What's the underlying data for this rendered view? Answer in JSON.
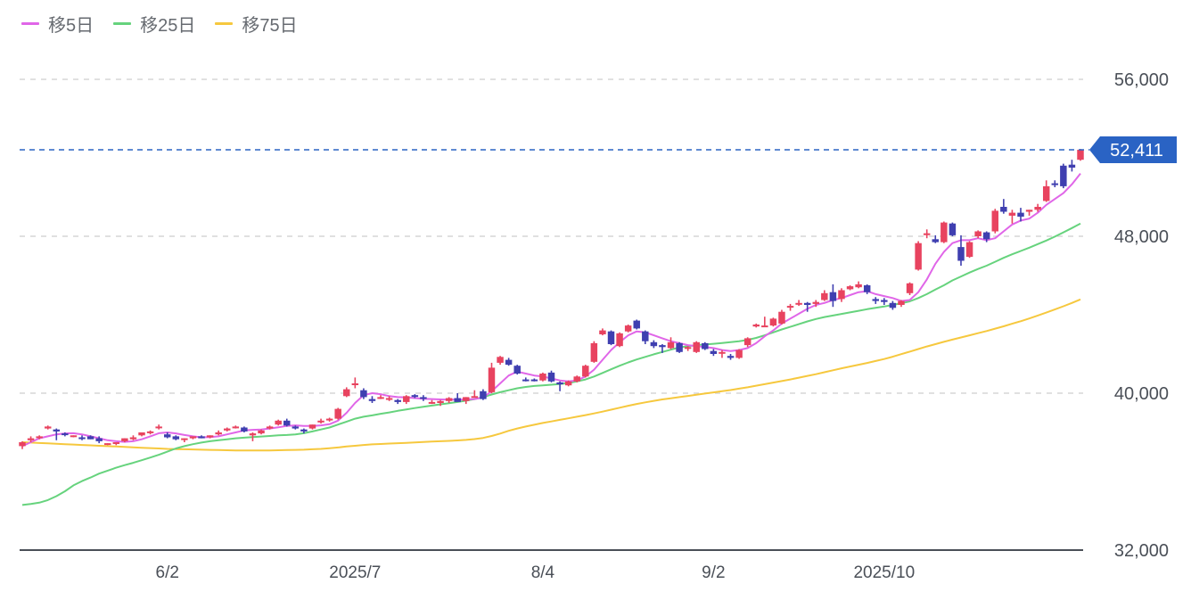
{
  "legend": [
    {
      "label": "移5日",
      "color": "#e066e8"
    },
    {
      "label": "移25日",
      "color": "#66d37d"
    },
    {
      "label": "移75日",
      "color": "#f6c83e"
    }
  ],
  "current_price": {
    "label": "52,411",
    "value": 52411,
    "color": "#2a63c4"
  },
  "colors": {
    "up": "#e8435f",
    "down": "#3f3fb0",
    "grid": "#d6d6d6",
    "axis": "#4a4f57"
  },
  "chart_data": {
    "type": "candlestick",
    "title": "",
    "xlabel": "",
    "ylabel": "",
    "ylim": [
      32000,
      56000
    ],
    "y_ticks": [
      {
        "label": "56,000",
        "value": 56000
      },
      {
        "label": "48,000",
        "value": 48000
      },
      {
        "label": "40,000",
        "value": 40000
      },
      {
        "label": "32,000",
        "value": 32000
      }
    ],
    "x_ticks": [
      {
        "label": "6/2",
        "index": 17
      },
      {
        "label": "2025/7",
        "index": 39
      },
      {
        "label": "8/4",
        "index": 61
      },
      {
        "label": "9/2",
        "index": 81
      },
      {
        "label": "2025/10",
        "index": 101
      }
    ],
    "grid": true,
    "legend_position": "top-left",
    "candles": [
      [
        37300,
        37550,
        37150,
        37500
      ],
      [
        37600,
        37800,
        37500,
        37700
      ],
      [
        37750,
        37850,
        37650,
        37800
      ],
      [
        38200,
        38350,
        38150,
        38300
      ],
      [
        38150,
        38200,
        37600,
        38050
      ],
      [
        37950,
        38000,
        37800,
        37900
      ],
      [
        37800,
        37850,
        37750,
        37850
      ],
      [
        37750,
        37850,
        37600,
        37700
      ],
      [
        37800,
        37850,
        37650,
        37650
      ],
      [
        37700,
        37800,
        37450,
        37550
      ],
      [
        37400,
        37450,
        37350,
        37450
      ],
      [
        37450,
        37500,
        37350,
        37500
      ],
      [
        37550,
        37700,
        37500,
        37700
      ],
      [
        37650,
        37850,
        37600,
        37750
      ],
      [
        37850,
        38000,
        37800,
        38000
      ],
      [
        38000,
        38100,
        37900,
        38050
      ],
      [
        38250,
        38400,
        38150,
        38300
      ],
      [
        37900,
        38000,
        37700,
        37750
      ],
      [
        37800,
        37850,
        37600,
        37650
      ],
      [
        37650,
        37700,
        37500,
        37700
      ],
      [
        37700,
        37800,
        37650,
        37800
      ],
      [
        37800,
        37850,
        37700,
        37700
      ],
      [
        37750,
        37850,
        37700,
        37850
      ],
      [
        37900,
        38100,
        37850,
        38000
      ],
      [
        38100,
        38250,
        38050,
        38200
      ],
      [
        38250,
        38350,
        38200,
        38300
      ],
      [
        38250,
        38300,
        38000,
        38050
      ],
      [
        37850,
        38000,
        37550,
        37950
      ],
      [
        37950,
        38150,
        37900,
        38100
      ],
      [
        38200,
        38350,
        38150,
        38300
      ],
      [
        38400,
        38650,
        38350,
        38600
      ],
      [
        38600,
        38700,
        38300,
        38350
      ],
      [
        38300,
        38350,
        38150,
        38200
      ],
      [
        38150,
        38200,
        37950,
        38050
      ],
      [
        38200,
        38400,
        38150,
        38400
      ],
      [
        38550,
        38700,
        38450,
        38600
      ],
      [
        38650,
        38750,
        38550,
        38700
      ],
      [
        38700,
        39250,
        38650,
        39200
      ],
      [
        39850,
        40300,
        39800,
        40200
      ],
      [
        40450,
        40800,
        40250,
        40500
      ],
      [
        40150,
        40250,
        39700,
        39800
      ],
      [
        39700,
        39850,
        39500,
        39600
      ],
      [
        39750,
        39900,
        39700,
        39800
      ],
      [
        39750,
        39850,
        39600,
        39750
      ],
      [
        39650,
        39700,
        39450,
        39550
      ],
      [
        39550,
        39900,
        39450,
        39850
      ],
      [
        39900,
        39950,
        39750,
        39850
      ],
      [
        39800,
        39900,
        39600,
        39750
      ],
      [
        39550,
        39650,
        39450,
        39550
      ],
      [
        39500,
        39650,
        39350,
        39600
      ],
      [
        39600,
        39800,
        39500,
        39750
      ],
      [
        39750,
        40000,
        39650,
        39550
      ],
      [
        39600,
        39800,
        39450,
        39800
      ],
      [
        39850,
        40150,
        39800,
        39850
      ],
      [
        40100,
        40200,
        39650,
        39700
      ],
      [
        40050,
        41550,
        40000,
        41300
      ],
      [
        41550,
        41900,
        41450,
        41850
      ],
      [
        41700,
        41800,
        41400,
        41450
      ],
      [
        41400,
        41450,
        40950,
        41000
      ],
      [
        40700,
        40800,
        40600,
        40650
      ],
      [
        40700,
        40750,
        40600,
        40650
      ],
      [
        40650,
        41050,
        40600,
        41000
      ],
      [
        41050,
        41150,
        40550,
        40600
      ],
      [
        40550,
        40600,
        40100,
        40450
      ],
      [
        40400,
        40650,
        40350,
        40600
      ],
      [
        40600,
        40900,
        40550,
        40850
      ],
      [
        40850,
        41450,
        40800,
        41400
      ],
      [
        41600,
        42650,
        41550,
        42550
      ],
      [
        43000,
        43300,
        42950,
        43200
      ],
      [
        43150,
        43200,
        42450,
        42500
      ],
      [
        42400,
        43100,
        42350,
        43050
      ],
      [
        43150,
        43500,
        43100,
        43450
      ],
      [
        43700,
        43750,
        43250,
        43300
      ],
      [
        43150,
        43200,
        42500,
        42650
      ],
      [
        42600,
        42700,
        42300,
        42400
      ],
      [
        42450,
        42500,
        42050,
        42350
      ],
      [
        42300,
        42850,
        42250,
        42600
      ],
      [
        42550,
        42600,
        42050,
        42100
      ],
      [
        42300,
        42400,
        42150,
        42350
      ],
      [
        42100,
        42650,
        42050,
        42600
      ],
      [
        42550,
        42600,
        42200,
        42250
      ],
      [
        42150,
        42250,
        41900,
        42000
      ],
      [
        42100,
        42200,
        41800,
        42100
      ],
      [
        41900,
        42000,
        41700,
        41800
      ],
      [
        41800,
        42250,
        41750,
        42200
      ],
      [
        42450,
        42850,
        42350,
        42800
      ],
      [
        43400,
        43550,
        43350,
        43500
      ],
      [
        43450,
        43900,
        43400,
        43450
      ],
      [
        43450,
        43850,
        43400,
        43800
      ],
      [
        43550,
        44250,
        43500,
        44150
      ],
      [
        44400,
        44550,
        44200,
        44450
      ],
      [
        44550,
        44750,
        44450,
        44600
      ],
      [
        44600,
        44650,
        44150,
        44500
      ],
      [
        44550,
        44750,
        44400,
        44650
      ],
      [
        44750,
        45250,
        44700,
        45100
      ],
      [
        45150,
        45550,
        44400,
        44700
      ],
      [
        44800,
        45350,
        44650,
        45250
      ],
      [
        45300,
        45500,
        45250,
        45450
      ],
      [
        45400,
        45700,
        45350,
        45550
      ],
      [
        45500,
        45550,
        45050,
        45150
      ],
      [
        44800,
        44900,
        44550,
        44700
      ],
      [
        44750,
        44850,
        44500,
        44650
      ],
      [
        44600,
        44700,
        44250,
        44350
      ],
      [
        44500,
        44750,
        44400,
        44700
      ],
      [
        45100,
        45650,
        45000,
        45600
      ],
      [
        46300,
        47750,
        46250,
        47650
      ],
      [
        48100,
        48350,
        47900,
        48150
      ],
      [
        47850,
        48050,
        47650,
        47700
      ],
      [
        47700,
        48750,
        47650,
        48700
      ],
      [
        48650,
        48700,
        48000,
        48050
      ],
      [
        47450,
        48050,
        46500,
        46750
      ],
      [
        46950,
        47750,
        46900,
        47700
      ],
      [
        48000,
        48300,
        47900,
        48250
      ],
      [
        48200,
        48250,
        47700,
        47850
      ],
      [
        48250,
        49400,
        48150,
        49300
      ],
      [
        49500,
        49900,
        49150,
        49250
      ],
      [
        49050,
        49350,
        48650,
        49200
      ],
      [
        49200,
        49450,
        48750,
        49000
      ],
      [
        49250,
        49350,
        49050,
        49350
      ],
      [
        49350,
        49650,
        49250,
        49500
      ],
      [
        49800,
        50850,
        49750,
        50550
      ],
      [
        50700,
        50850,
        50500,
        50650
      ],
      [
        51600,
        51700,
        50450,
        50550
      ],
      [
        51650,
        51900,
        51300,
        51500
      ],
      [
        51900,
        52450,
        51850,
        52411
      ]
    ],
    "series": [
      {
        "name": "移5日",
        "color": "#e066e8",
        "values": [
          37300,
          37500,
          37700,
          37800,
          37900,
          37950,
          37960,
          37900,
          37800,
          37700,
          37600,
          37550,
          37520,
          37550,
          37650,
          37800,
          37960,
          38000,
          37950,
          37870,
          37800,
          37750,
          37760,
          37800,
          37900,
          38000,
          38100,
          38130,
          38150,
          38200,
          38260,
          38330,
          38360,
          38330,
          38330,
          38360,
          38420,
          38600,
          39000,
          39500,
          39900,
          40000,
          39950,
          39850,
          39800,
          39780,
          39750,
          39720,
          39700,
          39680,
          39670,
          39670,
          39680,
          39700,
          39780,
          40100,
          40500,
          40900,
          41100,
          41000,
          40900,
          40850,
          40750,
          40650,
          40600,
          40650,
          40850,
          41200,
          41700,
          42200,
          42600,
          42950,
          43150,
          43100,
          42950,
          42800,
          42650,
          42550,
          42450,
          42400,
          42350,
          42300,
          42200,
          42150,
          42200,
          42300,
          42550,
          42900,
          43200,
          43550,
          43800,
          44050,
          44300,
          44500,
          44600,
          44750,
          44850,
          45000,
          45150,
          45200,
          45050,
          44950,
          44850,
          44700,
          44750,
          45150,
          45800,
          46600,
          47200,
          47650,
          47800,
          47800,
          47900,
          47800,
          47900,
          48250,
          48600,
          48800,
          48900,
          49200,
          49600,
          49900,
          50200,
          50650,
          51200
        ]
      },
      {
        "name": "移25日",
        "color": "#66d37d",
        "values": [
          34300,
          34350,
          34420,
          34550,
          34750,
          35000,
          35300,
          35520,
          35700,
          35900,
          36050,
          36200,
          36330,
          36450,
          36580,
          36720,
          36860,
          37020,
          37180,
          37300,
          37400,
          37480,
          37550,
          37600,
          37650,
          37700,
          37730,
          37760,
          37790,
          37820,
          37850,
          37870,
          37900,
          37960,
          38050,
          38150,
          38250,
          38400,
          38550,
          38700,
          38800,
          38870,
          38950,
          39020,
          39100,
          39170,
          39240,
          39310,
          39370,
          39430,
          39490,
          39550,
          39620,
          39700,
          39800,
          39930,
          40050,
          40150,
          40250,
          40320,
          40370,
          40400,
          40430,
          40470,
          40520,
          40600,
          40700,
          40850,
          41030,
          41220,
          41400,
          41570,
          41720,
          41850,
          41980,
          42100,
          42220,
          42330,
          42400,
          42450,
          42480,
          42520,
          42560,
          42600,
          42650,
          42720,
          42820,
          42950,
          43100,
          43250,
          43380,
          43520,
          43660,
          43780,
          43880,
          43960,
          44040,
          44120,
          44200,
          44280,
          44350,
          44420,
          44500,
          44580,
          44680,
          44850,
          45050,
          45280,
          45500,
          45750,
          45950,
          46150,
          46330,
          46500,
          46700,
          46900,
          47080,
          47250,
          47420,
          47600,
          47780,
          47980,
          48200,
          48420,
          48650
        ]
      },
      {
        "name": "移75日",
        "color": "#f6c83e",
        "values": [
          37500,
          37480,
          37460,
          37440,
          37420,
          37400,
          37380,
          37360,
          37340,
          37320,
          37300,
          37280,
          37260,
          37240,
          37220,
          37200,
          37180,
          37160,
          37150,
          37140,
          37130,
          37120,
          37110,
          37100,
          37090,
          37080,
          37080,
          37080,
          37080,
          37080,
          37090,
          37100,
          37110,
          37120,
          37140,
          37160,
          37190,
          37230,
          37280,
          37320,
          37360,
          37390,
          37410,
          37430,
          37450,
          37470,
          37490,
          37510,
          37530,
          37550,
          37570,
          37590,
          37620,
          37660,
          37720,
          37820,
          37940,
          38080,
          38200,
          38300,
          38390,
          38480,
          38560,
          38640,
          38720,
          38800,
          38880,
          38970,
          39060,
          39160,
          39260,
          39360,
          39450,
          39530,
          39610,
          39680,
          39740,
          39800,
          39860,
          39920,
          39980,
          40040,
          40100,
          40160,
          40230,
          40300,
          40380,
          40460,
          40540,
          40620,
          40700,
          40790,
          40880,
          40970,
          41070,
          41170,
          41270,
          41360,
          41450,
          41540,
          41640,
          41740,
          41860,
          41990,
          42120,
          42250,
          42380,
          42500,
          42620,
          42730,
          42840,
          42950,
          43060,
          43170,
          43290,
          43410,
          43540,
          43670,
          43810,
          43960,
          44110,
          44270,
          44430,
          44600,
          44780
        ]
      }
    ]
  }
}
